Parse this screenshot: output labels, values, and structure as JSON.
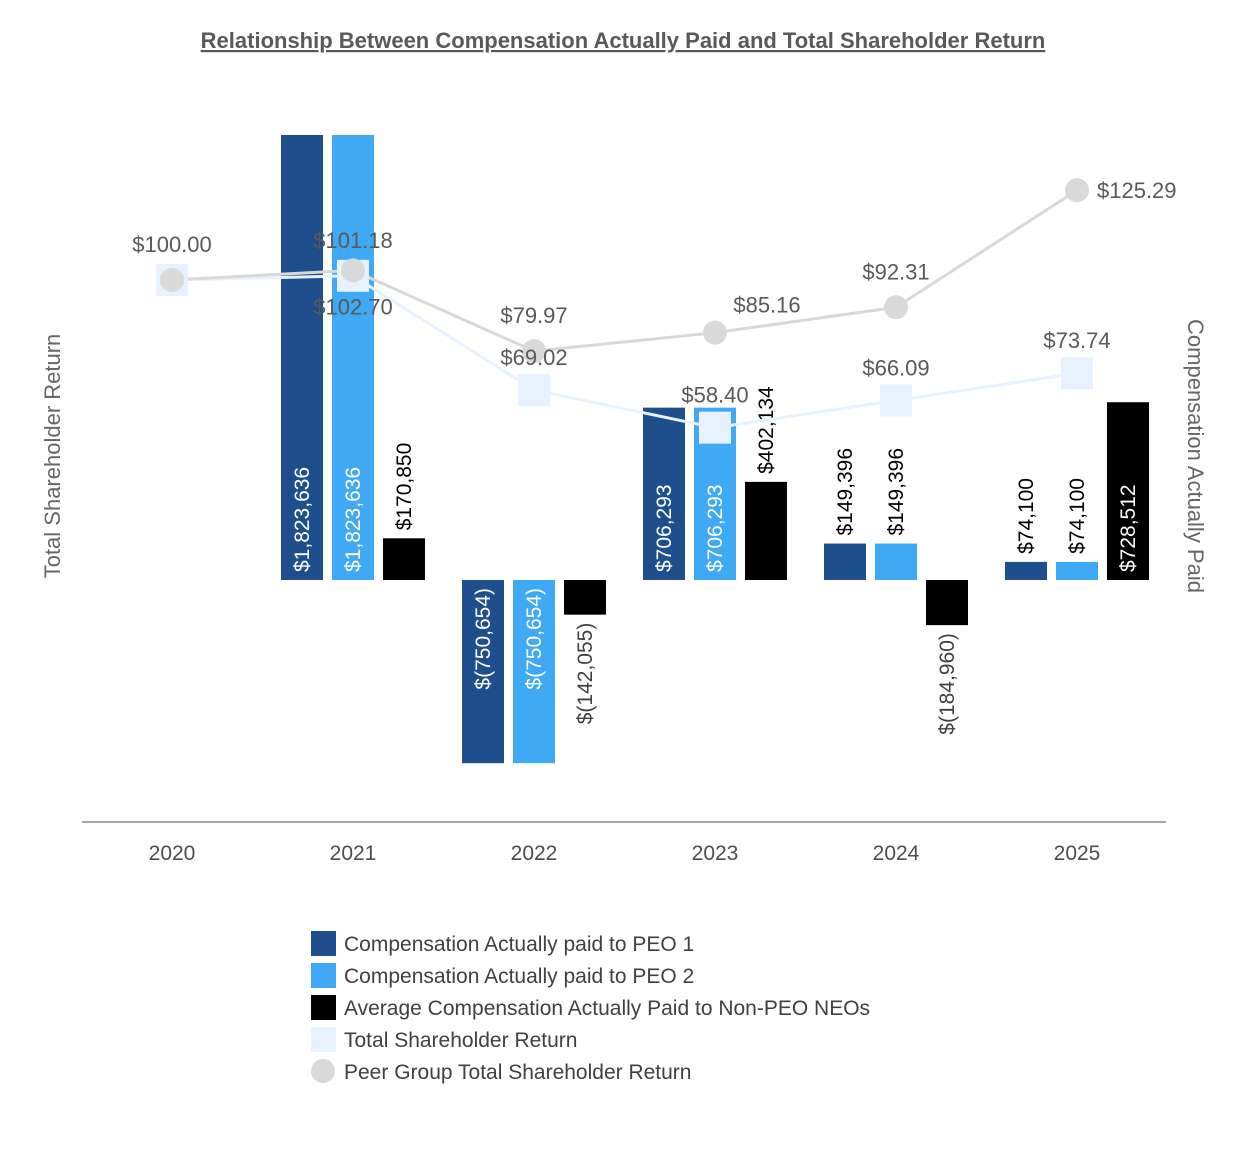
{
  "chart_data": {
    "type": "bar",
    "title": "Relationship Between Compensation Actually Paid and Total Shareholder Return",
    "ylabel_left": "Total Shareholder Return",
    "ylabel_right": "Compensation Actually Paid",
    "categories": [
      "2020",
      "2021",
      "2022",
      "2023",
      "2024",
      "2025"
    ],
    "bar_ylim": [
      -1000000,
      1823636
    ],
    "line_ylim": [
      0,
      160
    ],
    "bar_series": [
      {
        "name": "Compensation Actually paid to PEO 1",
        "color": "#1f4e8c",
        "values": [
          null,
          1823636,
          -750654,
          706293,
          149396,
          74100
        ],
        "labels": [
          null,
          "$1,823,636",
          "$(750,654)",
          "$706,293",
          "$149,396",
          "$74,100"
        ]
      },
      {
        "name": "Compensation Actually paid to PEO 2",
        "color": "#3fa9f5",
        "values": [
          null,
          1823636,
          -750654,
          706293,
          149396,
          74100
        ],
        "labels": [
          null,
          "$1,823,636",
          "$(750,654)",
          "$706,293",
          "$149,396",
          "$74,100"
        ]
      },
      {
        "name": "Average Compensation Actually Paid to Non-PEO NEOs",
        "color": "#000000",
        "values": [
          null,
          170850,
          -142055,
          402134,
          -184960,
          728512
        ],
        "labels": [
          null,
          "$170,850",
          "$(142,055)",
          "$402,134",
          "$(184,960)",
          "$728,512"
        ]
      }
    ],
    "line_series": [
      {
        "name": "Total Shareholder Return",
        "color": "#e8f2fe",
        "marker": "square",
        "values": [
          100.0,
          101.18,
          69.02,
          58.4,
          66.09,
          73.74
        ],
        "labels": [
          "$100.00",
          "$101.18",
          "$69.02",
          "$58.40",
          "$66.09",
          "$73.74"
        ]
      },
      {
        "name": "Peer Group Total Shareholder Return",
        "color": "#d9d9d9",
        "marker": "circle",
        "values": [
          100.0,
          102.7,
          79.97,
          85.16,
          92.31,
          125.29
        ],
        "labels": [
          "$100.00",
          "$102.70",
          "$79.97",
          "$85.16",
          "$92.31",
          "$125.29"
        ]
      }
    ]
  }
}
